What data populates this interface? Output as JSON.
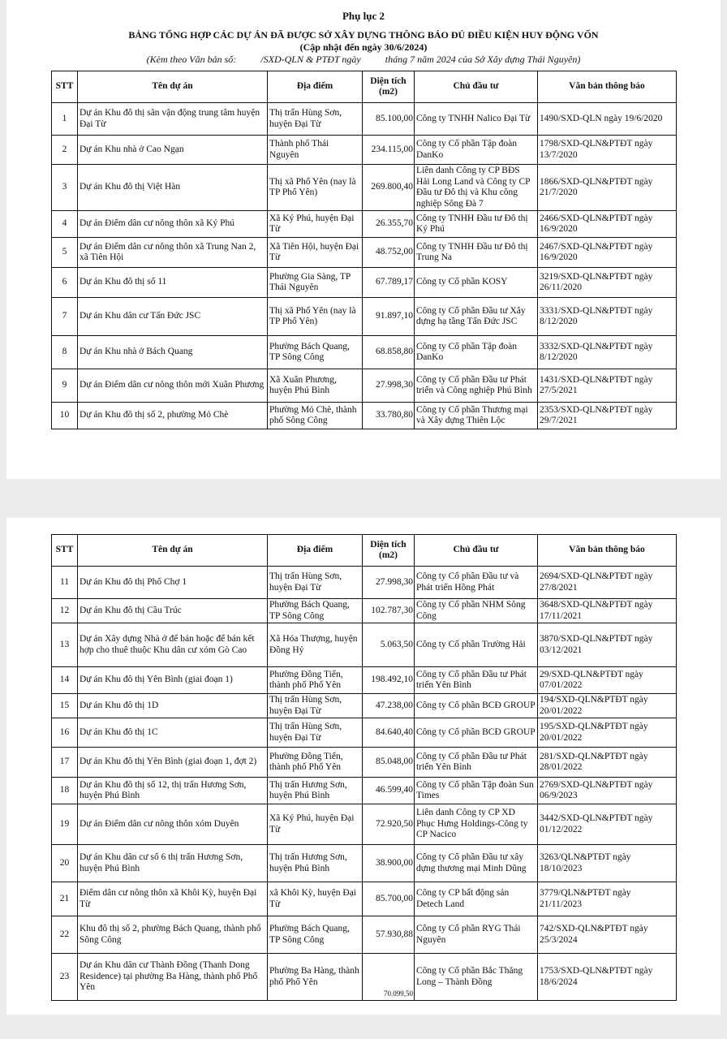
{
  "header": {
    "appendix": "Phụ lục 2",
    "title": "BẢNG TỔNG HỢP CÁC DỰ ÁN ĐÃ ĐƯỢC SỞ XÂY DỰNG THÔNG BÁO ĐỦ ĐIỀU KIỆN HUY ĐỘNG VỐN",
    "updated": "(Cập nhật đến ngày 30/6/2024)",
    "attached": "(Kèm theo Văn bản số:          /SXD-QLN & PTĐT ngày          tháng 7 năm 2024 của Sở Xây dựng Thái Nguyên)"
  },
  "columns": [
    "STT",
    "Tên dự án",
    "Địa điểm",
    "Diện tích (m2)",
    "Chủ đầu tư",
    "Văn bản thông báo"
  ],
  "table1": [
    {
      "stt": "1",
      "name": "Dự án Khu đô thị sân vận động trung tâm huyện Đại Từ",
      "location": "Thị trấn Hùng Sơn, huyện Đại Từ",
      "area": "85.100,00",
      "investor": "Công ty TNHH Nalico Đại Từ",
      "doc": "1490/SXD-QLN ngày 19/6/2020"
    },
    {
      "stt": "2",
      "name": "Dự án Khu nhà ở Cao Ngạn",
      "location": "Thành phố Thái Nguyên",
      "area": "234.115,00",
      "investor": "Công ty Cổ phần Tập đoàn DanKo",
      "doc": "1798/SXD-QLN&PTĐT ngày 13/7/2020"
    },
    {
      "stt": "3",
      "name": "Dự án Khu đô thị Việt Hàn",
      "location": "Thị xã Phổ Yên (nay là TP Phổ Yên)",
      "area": "269.800,40",
      "investor": "Liên danh Công ty CP BĐS Hải Long Land và Công ty CP Đầu tư Đô thị và Khu công nghiệp Sông Đà 7",
      "doc": "1866/SXD-QLN&PTĐT ngày 21/7/2020"
    },
    {
      "stt": "4",
      "name": "Dự án Điểm dân cư nông thôn xã Ký Phú",
      "location": "Xã Ký Phú, huyện Đại Từ",
      "area": "26.355,70",
      "investor": "Công ty TNHH Đầu tư Đô thị Ký Phú",
      "doc": "2466/SXD-QLN&PTĐT ngày 16/9/2020"
    },
    {
      "stt": "5",
      "name": "Dự án Điểm dân cư nông thôn xã Trung Nan 2, xã Tiên Hội",
      "location": "Xã Tiên Hội, huyện Đại Từ",
      "area": "48.752,00",
      "investor": "Công ty TNHH Đầu tư Đô thị Trung Na",
      "doc": "2467/SXD-QLN&PTĐT ngày 16/9/2020"
    },
    {
      "stt": "6",
      "name": "Dự án Khu đô thị số 11",
      "location": "Phường Gia Sàng, TP Thái Nguyên",
      "area": "67.789,17",
      "investor": "Công ty Cổ phần KOSY",
      "doc": "3219/SXD-QLN&PTĐT ngày 26/11/2020"
    },
    {
      "stt": "7",
      "name": "Dự án Khu dân cư Tấn Đức JSC",
      "location": "Thị xã Phổ Yên (nay là TP Phổ Yên)",
      "area": "91.897,10",
      "investor": "Công ty Cổ phần Đầu tư Xây dựng hạ tầng Tấn Đức JSC",
      "doc": "3331/SXD-QLN&PTĐT ngày 8/12/2020"
    },
    {
      "stt": "8",
      "name": "Dự án Khu nhà ở Bách Quang",
      "location": "Phường Bách Quang, TP Sông Công",
      "area": "68.858,80",
      "investor": "Công ty Cổ phần Tập đoàn DanKo",
      "doc": "3332/SXD-QLN&PTĐT ngày 8/12/2020"
    },
    {
      "stt": "9",
      "name": "Dự án Điểm dân cư nông thôn mới Xuân Phương",
      "location": "Xã Xuân Phương, huyện Phú Bình",
      "area": "27.998,30",
      "investor": "Công ty Cổ phần Đầu tư Phát triển và Công nghiệp Phú Bình",
      "doc": "1431/SXD-QLN&PTĐT ngày 27/5/2021"
    },
    {
      "stt": "10",
      "name": "Dự án Khu đô thị số 2, phường Mỏ Chè",
      "location": "Phường Mỏ Chè, thành phố Sông Công",
      "area": "33.780,80",
      "investor": "Công ty Cổ phần Thương mại và Xây dựng Thiên Lộc",
      "doc": "2353/SXD-QLN&PTĐT ngày 29/7/2021"
    }
  ],
  "table2": [
    {
      "stt": "11",
      "name": "Dự án Khu đô thị Phố Chợ 1",
      "location": "Thị trấn Hùng Sơn, huyện Đại Từ",
      "area": "27.998,30",
      "investor": "Công ty Cổ phần Đầu tư và Phát triển Hồng Phát",
      "doc": "2694/SXD-QLN&PTĐT ngày 27/8/2021"
    },
    {
      "stt": "12",
      "name": "Dự án Khu đô thị Cầu Trúc",
      "location": "Phường Bách Quang, TP Sông Công",
      "area": "102.787,30",
      "investor": "Công ty Cổ phần NHM Sông Công",
      "doc": "3648/SXD-QLN&PTĐT ngày 17/11/2021"
    },
    {
      "stt": "13",
      "name": "Dự án Xây dựng Nhà ở để bán hoặc để bán kết hợp cho thuê thuộc Khu dân cư xóm Gò Cao",
      "location": "Xã Hóa Thượng, huyện Đồng Hỷ",
      "area": "5.063,50",
      "investor": "Công ty Cổ phần Trường Hải",
      "doc": "3870/SXD-QLN&PTĐT ngày 03/12/2021"
    },
    {
      "stt": "14",
      "name": "Dự án Khu đô thị Yên Bình (giai đoạn 1)",
      "location": "Phường Đồng Tiến, thành phố Phổ Yên",
      "area": "198.492,10",
      "investor": "Công ty Cổ phần Đầu tư Phát triển Yên Bình",
      "doc": "29/SXD-QLN&PTĐT ngày 07/01/2022"
    },
    {
      "stt": "15",
      "name": "Dự án Khu đô thị 1D",
      "location": "Thị trấn Hùng Sơn, huyện Đại Từ",
      "area": "47.238,00",
      "investor": "Công ty Cổ phần BCĐ GROUP",
      "doc": "194/SXD-QLN&PTĐT ngày 20/01/2022"
    },
    {
      "stt": "16",
      "name": "Dự án Khu đô thị 1C",
      "location": "Thị trấn Hùng Sơn, huyện Đại Từ",
      "area": "84.640,40",
      "investor": "Công ty Cổ phần BCĐ GROUP",
      "doc": "195/SXD-QLN&PTĐT ngày 20/01/2022"
    },
    {
      "stt": "17",
      "name": "Dự án Khu đô thị Yên Bình (giai đoạn 1, đợt 2)",
      "location": "Phường Đồng Tiến, thành phố Phổ Yên",
      "area": "85.048,00",
      "investor": "Công ty Cổ phần Đầu tư Phát triển Yên Bình",
      "doc": "281/SXD-QLN&PTĐT ngày 28/01/2022"
    },
    {
      "stt": "18",
      "name": "Dự án Khu đô thị số 12, thị trấn Hương Sơn, huyện Phú Bình",
      "location": "Thị trấn Hương Sơn, huyện Phú Bình",
      "area": "46.599,40",
      "investor": "Công ty Cổ phần Tập đoàn Sun Times",
      "doc": "2769/SXD-QLN&PTĐT ngày 06/9/2023"
    },
    {
      "stt": "19",
      "name": "Dự án Điểm dân cư nông thôn xóm Duyên",
      "location": "Xã Ký Phú, huyện Đại Từ",
      "area": "72.920,50",
      "investor": "Liên danh Công ty CP XD Phục Hưng Holdings-Công ty CP Nacico",
      "doc": "3442/SXD-QLN&PTĐT ngày 01/12/2022"
    },
    {
      "stt": "20",
      "name": "Dự án Khu dân cư số 6 thị trấn Hương Sơn, huyện Phú Bình",
      "location": "Thị trấn Hương Sơn, huyện Phú Bình",
      "area": "38.900,00",
      "investor": "Công ty Cổ phần Đầu tư xây dựng thương mại Minh Dũng",
      "doc": "3263/QLN&PTĐT ngày 18/10/2023"
    },
    {
      "stt": "21",
      "name": "Điểm dân cư nông thôn xã Khôi Kỳ, huyện Đại Từ",
      "location": "xã Khôi Kỳ, huyện Đại Từ",
      "area": "85.700,00",
      "investor": "Công ty CP bất động sản Detech Land",
      "doc": "3779/QLN&PTĐT ngày 21/11/2023"
    },
    {
      "stt": "22",
      "name": "Khu đô thị số 2, phường Bách Quang, thành phố Sông Công",
      "location": "Phường Bách Quang, TP Sông Công",
      "area": "57.930,88",
      "investor": "Công ty Cổ phần RYG Thái Nguyên",
      "doc": "742/SXD-QLN&PTĐT ngày 25/3/2024"
    },
    {
      "stt": "23",
      "name": "Dự án Khu dân cư Thành Đồng (Thanh Dong Residence) tại phường Ba Hàng, thành phố Phổ Yên",
      "location": "Phường Ba Hàng, thành phố Phổ Yên",
      "area": "70.099,50",
      "investor": "Công ty Cổ phần Bắc Thăng Long – Thành Đồng",
      "doc": "1753/SXD-QLN&PTĐT ngày 18/6/2024"
    }
  ]
}
